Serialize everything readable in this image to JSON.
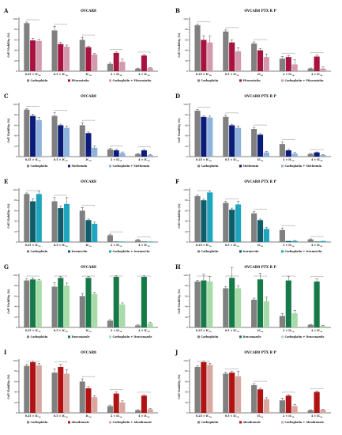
{
  "figure": {
    "panels": [
      "A",
      "B",
      "C",
      "D",
      "E",
      "F",
      "G",
      "H",
      "I",
      "J"
    ]
  },
  "chart_data": [
    {
      "panel": "A",
      "type": "bar",
      "title": "OVCAR8",
      "ylabel": "Cell Viability (%)",
      "ylim": [
        0,
        100
      ],
      "yticks": [
        0,
        20,
        40,
        60,
        80,
        100
      ],
      "grid": false,
      "legend": "bottom",
      "categories": [
        "0.25 × IC50",
        "0.5 × IC50",
        "IC50",
        "2 × IC50",
        "4 × IC50"
      ],
      "colors": [
        "#808080",
        "#a8123e",
        "#d39aad"
      ],
      "series": [
        {
          "name": "Carboplatin",
          "values": [
            92,
            78,
            60,
            14,
            5
          ],
          "errors": [
            2,
            8,
            5,
            2,
            1
          ]
        },
        {
          "name": "Pitavastatin",
          "values": [
            59,
            52,
            46,
            35,
            30
          ],
          "errors": [
            4,
            3,
            2,
            2,
            2
          ]
        },
        {
          "name": "Carboplatin + Pitavastatin",
          "values": [
            58,
            47,
            32,
            18,
            6
          ],
          "errors": [
            3,
            3,
            2,
            5,
            1
          ]
        }
      ]
    },
    {
      "panel": "B",
      "type": "bar",
      "title": "OVCAR8 PTX R P",
      "ylabel": "Cell Viability (%)",
      "ylim": [
        0,
        100
      ],
      "yticks": [
        0,
        20,
        40,
        60,
        80,
        100
      ],
      "grid": false,
      "legend": "bottom",
      "categories": [
        "0.25 × IC50",
        "0.5 × IC50",
        "IC50",
        "2 × IC50",
        "4 × IC50"
      ],
      "colors": [
        "#808080",
        "#a8123e",
        "#d39aad"
      ],
      "series": [
        {
          "name": "Carboplatin",
          "values": [
            88,
            76,
            53,
            24,
            5
          ],
          "errors": [
            2,
            3,
            3,
            4,
            1
          ]
        },
        {
          "name": "Pitavastatin",
          "values": [
            60,
            55,
            40,
            27,
            28
          ],
          "errors": [
            8,
            5,
            3,
            3,
            3
          ]
        },
        {
          "name": "Carboplatin + Pitavastatin",
          "values": [
            55,
            38,
            27,
            13,
            5
          ],
          "errors": [
            12,
            7,
            6,
            9,
            3
          ]
        }
      ]
    },
    {
      "panel": "C",
      "type": "bar",
      "title": "OVCAR8",
      "ylabel": "Cell Viability (%)",
      "ylim": [
        0,
        100
      ],
      "yticks": [
        0,
        20,
        40,
        60,
        80,
        100
      ],
      "grid": false,
      "legend": "bottom",
      "categories": [
        "0.25 × IC50",
        "0.5 × IC50",
        "IC50",
        "2 × IC50",
        "4 × IC50"
      ],
      "colors": [
        "#808080",
        "#0a1c7a",
        "#8fb2dc"
      ],
      "series": [
        {
          "name": "Carboplatin",
          "values": [
            90,
            78,
            60,
            14,
            5
          ],
          "errors": [
            2,
            6,
            5,
            2,
            1
          ]
        },
        {
          "name": "Metformin",
          "values": [
            78,
            60,
            45,
            12,
            12
          ],
          "errors": [
            3,
            2,
            2,
            2,
            2
          ]
        },
        {
          "name": "Carboplatin + Metformin",
          "values": [
            70,
            55,
            17,
            7,
            3
          ],
          "errors": [
            5,
            3,
            3,
            2,
            1
          ]
        }
      ]
    },
    {
      "panel": "D",
      "type": "bar",
      "title": "OVCAR8 PTX R P",
      "ylabel": "Cell Viability (%)",
      "ylim": [
        0,
        100
      ],
      "yticks": [
        0,
        20,
        40,
        60,
        80,
        100
      ],
      "grid": false,
      "legend": "bottom",
      "categories": [
        "0.25 × IC50",
        "0.5 × IC50",
        "IC50",
        "2 × IC50",
        "4 × IC50"
      ],
      "colors": [
        "#808080",
        "#0a1c7a",
        "#8fb2dc"
      ],
      "series": [
        {
          "name": "Carboplatin",
          "values": [
            88,
            76,
            53,
            24,
            5
          ],
          "errors": [
            2,
            3,
            3,
            4,
            1
          ]
        },
        {
          "name": "Metformin",
          "values": [
            76,
            60,
            42,
            12,
            8
          ],
          "errors": [
            2,
            2,
            2,
            2,
            1
          ]
        },
        {
          "name": "Carboplatin + Metformin",
          "values": [
            75,
            55,
            8,
            6,
            3
          ],
          "errors": [
            3,
            3,
            2,
            2,
            1
          ]
        }
      ]
    },
    {
      "panel": "E",
      "type": "bar",
      "title": "OVCAR8",
      "ylabel": "Cell Viability (%)",
      "ylim": [
        0,
        100
      ],
      "yticks": [
        0,
        20,
        40,
        60,
        80,
        100
      ],
      "grid": false,
      "legend": "bottom",
      "categories": [
        "0.25 × IC50",
        "0.5 × IC50",
        "IC50",
        "2 × IC50",
        "4 × IC50"
      ],
      "colors": [
        "#808080",
        "#0f5d6a",
        "#1fa5be"
      ],
      "series": [
        {
          "name": "Carboplatin",
          "values": [
            92,
            78,
            60,
            13,
            4
          ],
          "errors": [
            2,
            7,
            6,
            2,
            1
          ]
        },
        {
          "name": "Ivermectin",
          "values": [
            78,
            65,
            42,
            1,
            1
          ],
          "errors": [
            5,
            4,
            2,
            0,
            0
          ]
        },
        {
          "name": "Carboplatin + Ivermectin",
          "values": [
            92,
            73,
            35,
            1,
            1
          ],
          "errors": [
            6,
            12,
            3,
            0,
            0
          ]
        }
      ]
    },
    {
      "panel": "F",
      "type": "bar",
      "title": "OVCAR8 PTX R P",
      "ylabel": "Cell Viability (%)",
      "ylim": [
        0,
        100
      ],
      "yticks": [
        0,
        20,
        40,
        60,
        80,
        100
      ],
      "grid": false,
      "legend": "bottom",
      "categories": [
        "0.25 × IC50",
        "0.5 × IC50",
        "IC50",
        "2 × IC50",
        "4 × IC50"
      ],
      "colors": [
        "#808080",
        "#0f5d6a",
        "#1fa5be"
      ],
      "series": [
        {
          "name": "Carboplatin",
          "values": [
            88,
            75,
            55,
            23,
            5
          ],
          "errors": [
            2,
            3,
            3,
            4,
            1
          ]
        },
        {
          "name": "Ivermectin",
          "values": [
            80,
            62,
            42,
            2,
            1
          ],
          "errors": [
            2,
            3,
            2,
            0,
            0
          ]
        },
        {
          "name": "Carboplatin + Ivermectin",
          "values": [
            95,
            72,
            25,
            2,
            2
          ],
          "errors": [
            3,
            6,
            3,
            1,
            0
          ]
        }
      ]
    },
    {
      "panel": "G",
      "type": "bar",
      "title": "OVCAR8",
      "ylabel": "Cell Viability (%)",
      "ylim": [
        0,
        100
      ],
      "yticks": [
        0,
        20,
        40,
        60,
        80,
        100
      ],
      "grid": false,
      "legend": "bottom",
      "categories": [
        "0.25 × IC50",
        "0.5 × IC50",
        "IC50",
        "2 × IC50",
        "4 × IC50"
      ],
      "colors": [
        "#808080",
        "#157a48",
        "#a7dba8"
      ],
      "series": [
        {
          "name": "Carboplatin",
          "values": [
            90,
            78,
            60,
            13,
            4
          ],
          "errors": [
            3,
            8,
            5,
            2,
            1
          ]
        },
        {
          "name": "Itraconazole",
          "values": [
            92,
            95,
            95,
            97,
            97
          ],
          "errors": [
            3,
            3,
            3,
            2,
            2
          ]
        },
        {
          "name": "Carboplatin + Itraconazole",
          "values": [
            90,
            80,
            64,
            44,
            8
          ],
          "errors": [
            2,
            5,
            3,
            3,
            2
          ]
        }
      ]
    },
    {
      "panel": "H",
      "type": "bar",
      "title": "OVCAR8 PTX R P",
      "ylabel": "Cell Viability (%)",
      "ylim": [
        0,
        100
      ],
      "yticks": [
        0,
        20,
        40,
        60,
        80,
        100
      ],
      "grid": false,
      "legend": "bottom",
      "categories": [
        "0.25 × IC50",
        "0.5 × IC50",
        "IC50",
        "2 × IC50",
        "4 × IC50"
      ],
      "colors": [
        "#808080",
        "#157a48",
        "#a7dba8"
      ],
      "series": [
        {
          "name": "Carboplatin",
          "values": [
            88,
            75,
            53,
            22,
            5
          ],
          "errors": [
            2,
            3,
            3,
            5,
            1
          ]
        },
        {
          "name": "Itraconazole",
          "values": [
            90,
            95,
            92,
            90,
            88
          ],
          "errors": [
            12,
            20,
            12,
            8,
            5
          ]
        },
        {
          "name": "Carboplatin + Itraconazole",
          "values": [
            88,
            75,
            50,
            27,
            3
          ],
          "errors": [
            10,
            5,
            8,
            6,
            1
          ]
        }
      ]
    },
    {
      "panel": "I",
      "type": "bar",
      "title": "OVCAR8",
      "ylabel": "Cell Viability (%)",
      "ylim": [
        0,
        100
      ],
      "yticks": [
        0,
        20,
        40,
        60,
        80,
        100
      ],
      "grid": false,
      "legend": "bottom",
      "categories": [
        "0.25 × IC50",
        "0.5 × IC50",
        "IC50",
        "2 × IC50",
        "4 × IC50"
      ],
      "colors": [
        "#808080",
        "#b01313",
        "#d9a6a0"
      ],
      "series": [
        {
          "name": "Carboplatin",
          "values": [
            90,
            77,
            60,
            13,
            5
          ],
          "errors": [
            3,
            7,
            5,
            2,
            1
          ]
        },
        {
          "name": "Alendronate",
          "values": [
            97,
            88,
            47,
            37,
            33
          ],
          "errors": [
            2,
            5,
            3,
            3,
            2
          ]
        },
        {
          "name": "Carboplatin + Alendronate",
          "values": [
            91,
            75,
            30,
            20,
            7
          ],
          "errors": [
            4,
            8,
            3,
            3,
            1
          ]
        }
      ]
    },
    {
      "panel": "J",
      "type": "bar",
      "title": "OVCAR8 PTX R P",
      "ylabel": "Cell Viability (%)",
      "ylim": [
        0,
        100
      ],
      "yticks": [
        0,
        20,
        40,
        60,
        80,
        100
      ],
      "grid": false,
      "legend": "bottom",
      "categories": [
        "0.25 × IC50",
        "0.5 × IC50",
        "IC50",
        "2 × IC50",
        "4 × IC50"
      ],
      "colors": [
        "#808080",
        "#b01313",
        "#d9a6a0"
      ],
      "series": [
        {
          "name": "Carboplatin",
          "values": [
            88,
            75,
            53,
            24,
            5
          ],
          "errors": [
            2,
            3,
            3,
            4,
            1
          ]
        },
        {
          "name": "Alendronate",
          "values": [
            97,
            77,
            45,
            33,
            40
          ],
          "errors": [
            2,
            3,
            2,
            2,
            2
          ]
        },
        {
          "name": "Carboplatin + Alendronate",
          "values": [
            92,
            70,
            26,
            13,
            6
          ],
          "errors": [
            3,
            10,
            3,
            3,
            1
          ]
        }
      ]
    }
  ]
}
